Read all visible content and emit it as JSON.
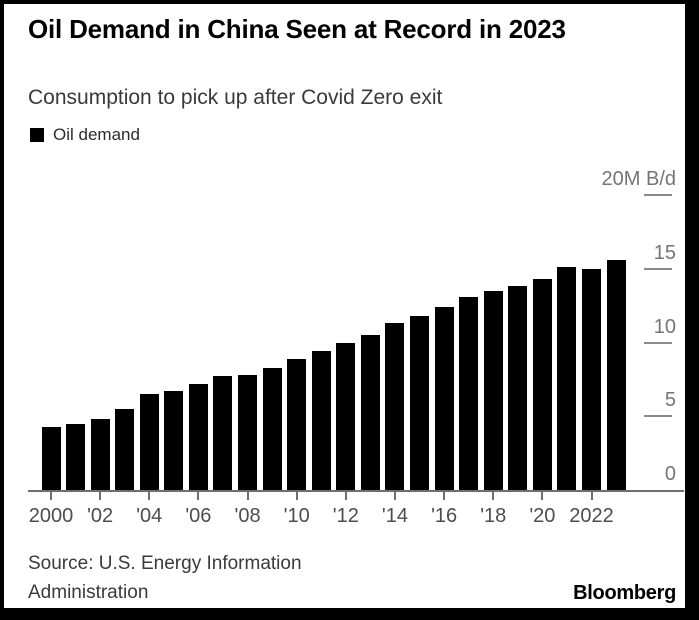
{
  "header": {
    "title": "Oil Demand in China Seen at Record in 2023",
    "subtitle": "Consumption to pick up after Covid Zero exit"
  },
  "legend": {
    "label": "Oil demand",
    "swatch_color": "#000000"
  },
  "chart_data": {
    "type": "bar",
    "title": "Oil Demand in China Seen at Record in 2023",
    "subtitle": "Consumption to pick up after Covid Zero exit",
    "legend": [
      "Oil demand"
    ],
    "legend_position": "top-left",
    "unit_label": "20M B/d",
    "categories": [
      2000,
      2001,
      2002,
      2003,
      2004,
      2005,
      2006,
      2007,
      2008,
      2009,
      2010,
      2011,
      2012,
      2013,
      2014,
      2015,
      2016,
      2017,
      2018,
      2019,
      2020,
      2021,
      2022,
      2023
    ],
    "values": [
      4.3,
      4.5,
      4.8,
      5.5,
      6.5,
      6.7,
      7.2,
      7.7,
      7.8,
      8.3,
      8.9,
      9.4,
      10.0,
      10.5,
      11.3,
      11.8,
      12.4,
      13.1,
      13.5,
      13.8,
      14.3,
      15.1,
      15.0,
      15.6
    ],
    "ylim": [
      0,
      20
    ],
    "y_ticks": [
      0,
      5,
      10,
      15,
      20
    ],
    "y_tick_labels": [
      "0",
      "5",
      "10",
      "15",
      "20M B/d"
    ],
    "x_ticks": [
      2000,
      2002,
      2004,
      2006,
      2008,
      2010,
      2012,
      2014,
      2016,
      2018,
      2020,
      2022
    ],
    "x_tick_labels": [
      "2000",
      "'02",
      "'04",
      "'06",
      "'08",
      "'10",
      "'12",
      "'14",
      "'16",
      "'18",
      "'20",
      "2022"
    ],
    "grid": "right-side tick dashes only",
    "bar_color": "#000000",
    "axis_color": "#6e6e6e",
    "tick_label_color": "#757575"
  },
  "footer": {
    "source": "Source: U.S. Energy Information Administration",
    "brand": "Bloomberg"
  }
}
